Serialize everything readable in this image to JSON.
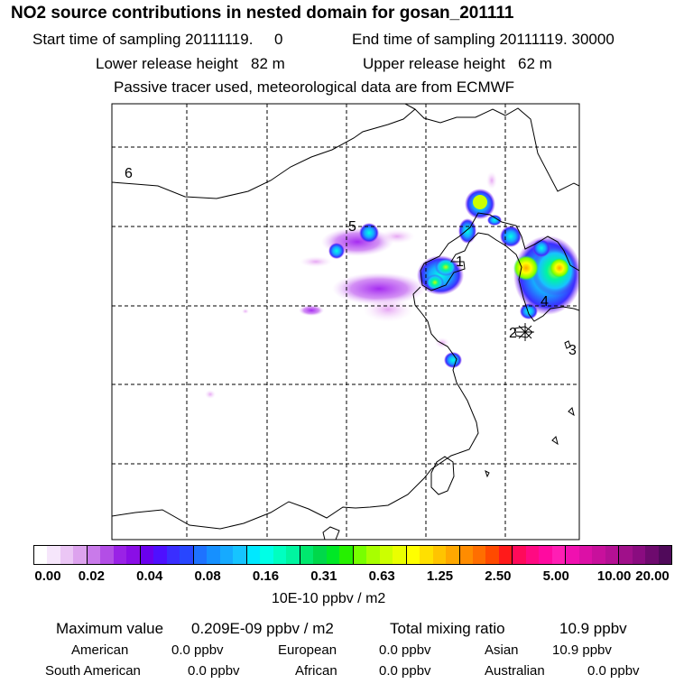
{
  "header": {
    "title": "NO2 source contributions in nested domain for gosan_201111",
    "start_time": "Start time of sampling 20111119.     0",
    "end_time": "End time of sampling 20111119. 30000",
    "lower_height": "Lower release height   82 m",
    "upper_height": "Upper release height   62 m",
    "passive_note": "Passive tracer used, meteorological data are from ECMWF"
  },
  "map": {
    "receptor_labels": [
      "1",
      "2",
      "3",
      "4",
      "5",
      "6"
    ]
  },
  "colorbar": {
    "tick_labels": [
      "0.00",
      "0.02",
      "0.04",
      "0.08",
      "0.16",
      "0.31",
      "0.63",
      "1.25",
      "2.50",
      "5.00",
      "10.00",
      "20.00"
    ],
    "segment_colors": [
      "#ffffff",
      "#f6e6fb",
      "#ebc6f5",
      "#dda3ee",
      "#c97aea",
      "#b34ee6",
      "#9a22e6",
      "#8a0ee6",
      "#6a00ee",
      "#4e10ff",
      "#3a2eff",
      "#2846ff",
      "#1e72ff",
      "#1690ff",
      "#16aaff",
      "#16c4ff",
      "#00e8ff",
      "#00ffe6",
      "#00ffc0",
      "#00f5a0",
      "#00e86e",
      "#00d84a",
      "#00e826",
      "#26f000",
      "#78ff00",
      "#a8ff00",
      "#ccff00",
      "#eaff00",
      "#ffff00",
      "#ffe000",
      "#ffc400",
      "#ffa800",
      "#ff8c00",
      "#ff6e00",
      "#ff4a00",
      "#ff1a1a",
      "#ff0a5a",
      "#ff0a82",
      "#ff0aa0",
      "#ff1eb4",
      "#f010b0",
      "#dc10a6",
      "#c8109c",
      "#b41094",
      "#a0108a",
      "#8a0c80",
      "#6e0a6e",
      "#500a5a"
    ],
    "unit_label": "10E-10 ppbv / m2"
  },
  "stats": {
    "max_label": "Maximum value",
    "max_value": "0.209E-09 ppbv / m2",
    "total_label": "Total mixing ratio",
    "total_value": "10.9 ppbv",
    "regions": [
      {
        "name": "American",
        "value": "0.0 ppbv"
      },
      {
        "name": "European",
        "value": "0.0 ppbv"
      },
      {
        "name": "Asian",
        "value": "10.9 ppbv"
      },
      {
        "name": "South American",
        "value": "0.0 ppbv"
      },
      {
        "name": "African",
        "value": "0.0 ppbv"
      },
      {
        "name": "Australian",
        "value": "0.0 ppbv"
      }
    ]
  }
}
